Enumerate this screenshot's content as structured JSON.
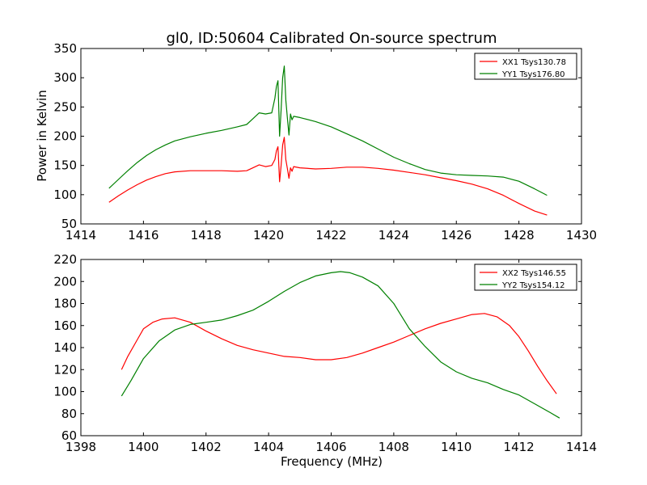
{
  "figure": {
    "title": "gl0, ID:50604 Calibrated On-source spectrum",
    "xlabel": "Frequency (MHz)",
    "ylabel": "Power in Kelvin"
  },
  "chart_data": [
    {
      "type": "line",
      "title": "gl0, ID:50604 Calibrated On-source spectrum",
      "xlabel": "",
      "ylabel": "Power in Kelvin",
      "xlim": [
        1414,
        1430
      ],
      "ylim": [
        50,
        350
      ],
      "xticks": [
        "1414",
        "1416",
        "1418",
        "1420",
        "1422",
        "1424",
        "1426",
        "1428",
        "1430"
      ],
      "yticks": [
        "50",
        "100",
        "150",
        "200",
        "250",
        "300",
        "350"
      ],
      "grid": false,
      "legend_position": "top-right",
      "series": [
        {
          "name": "XX1 Tsys130.78",
          "color": "#ff0000",
          "x": [
            1414.9,
            1415.2,
            1415.5,
            1415.8,
            1416.1,
            1416.4,
            1416.7,
            1417.0,
            1417.5,
            1418.0,
            1418.5,
            1419.0,
            1419.3,
            1419.5,
            1419.7,
            1419.9,
            1420.1,
            1420.2,
            1420.25,
            1420.3,
            1420.35,
            1420.4,
            1420.45,
            1420.5,
            1420.55,
            1420.6,
            1420.65,
            1420.7,
            1420.75,
            1420.8,
            1421.0,
            1421.5,
            1422.0,
            1422.5,
            1423.0,
            1423.5,
            1424.0,
            1424.5,
            1425.0,
            1425.5,
            1426.0,
            1426.5,
            1427.0,
            1427.5,
            1428.0,
            1428.5,
            1428.9
          ],
          "values": [
            87,
            98,
            108,
            117,
            125,
            131,
            136,
            139,
            141,
            141,
            141,
            140,
            141,
            146,
            151,
            148,
            150,
            160,
            175,
            182,
            122,
            150,
            185,
            198,
            160,
            145,
            128,
            146,
            140,
            148,
            146,
            144,
            145,
            147,
            147,
            145,
            142,
            138,
            134,
            129,
            124,
            118,
            110,
            99,
            85,
            72,
            65
          ]
        },
        {
          "name": "YY1 Tsys176.80",
          "color": "#008000",
          "x": [
            1414.9,
            1415.2,
            1415.5,
            1415.8,
            1416.1,
            1416.4,
            1416.7,
            1417.0,
            1417.5,
            1418.0,
            1418.5,
            1419.0,
            1419.3,
            1419.5,
            1419.7,
            1419.9,
            1420.1,
            1420.2,
            1420.25,
            1420.3,
            1420.35,
            1420.4,
            1420.45,
            1420.5,
            1420.55,
            1420.6,
            1420.65,
            1420.7,
            1420.75,
            1420.8,
            1421.0,
            1421.5,
            1422.0,
            1422.5,
            1423.0,
            1423.5,
            1424.0,
            1424.5,
            1425.0,
            1425.5,
            1426.0,
            1426.5,
            1427.0,
            1427.5,
            1428.0,
            1428.5,
            1428.9
          ],
          "values": [
            111,
            126,
            141,
            155,
            167,
            177,
            185,
            192,
            199,
            205,
            210,
            216,
            220,
            230,
            240,
            238,
            240,
            265,
            285,
            295,
            200,
            245,
            300,
            320,
            262,
            232,
            202,
            238,
            228,
            234,
            232,
            225,
            216,
            204,
            192,
            178,
            164,
            153,
            143,
            137,
            134,
            133,
            132,
            130,
            123,
            110,
            99
          ]
        }
      ]
    },
    {
      "type": "line",
      "title": "",
      "xlabel": "Frequency (MHz)",
      "ylabel": "",
      "xlim": [
        1398,
        1414
      ],
      "ylim": [
        60,
        220
      ],
      "xticks": [
        "1398",
        "1400",
        "1402",
        "1404",
        "1406",
        "1408",
        "1410",
        "1412",
        "1414"
      ],
      "yticks": [
        "60",
        "80",
        "100",
        "120",
        "140",
        "160",
        "180",
        "200",
        "220"
      ],
      "grid": false,
      "legend_position": "top-right",
      "series": [
        {
          "name": "XX2 Tsys146.55",
          "color": "#ff0000",
          "x": [
            1399.3,
            1399.5,
            1399.8,
            1400.0,
            1400.3,
            1400.6,
            1401.0,
            1401.5,
            1402.0,
            1402.5,
            1403.0,
            1403.5,
            1404.0,
            1404.5,
            1405.0,
            1405.5,
            1406.0,
            1406.5,
            1407.0,
            1407.5,
            1408.0,
            1408.5,
            1409.0,
            1409.5,
            1410.0,
            1410.5,
            1410.9,
            1411.3,
            1411.7,
            1412.0,
            1412.3,
            1412.6,
            1412.9,
            1413.2
          ],
          "values": [
            120,
            132,
            147,
            157,
            163,
            166,
            167,
            163,
            155,
            148,
            142,
            138,
            135,
            132,
            131,
            129,
            129,
            131,
            135,
            140,
            145,
            151,
            157,
            162,
            166,
            170,
            171,
            168,
            160,
            150,
            137,
            123,
            110,
            98
          ]
        },
        {
          "name": "YY2 Tsys154.12",
          "color": "#008000",
          "x": [
            1399.3,
            1399.6,
            1400.0,
            1400.5,
            1401.0,
            1401.5,
            1402.0,
            1402.5,
            1403.0,
            1403.5,
            1404.0,
            1404.5,
            1405.0,
            1405.5,
            1406.0,
            1406.3,
            1406.6,
            1407.0,
            1407.5,
            1408.0,
            1408.5,
            1409.0,
            1409.5,
            1410.0,
            1410.5,
            1411.0,
            1411.5,
            1412.0,
            1412.5,
            1413.0,
            1413.3
          ],
          "values": [
            96,
            110,
            130,
            146,
            156,
            161,
            163,
            165,
            169,
            174,
            182,
            191,
            199,
            205,
            208,
            209,
            208,
            204,
            196,
            180,
            157,
            141,
            127,
            118,
            112,
            108,
            102,
            97,
            89,
            81,
            76
          ]
        }
      ]
    }
  ]
}
